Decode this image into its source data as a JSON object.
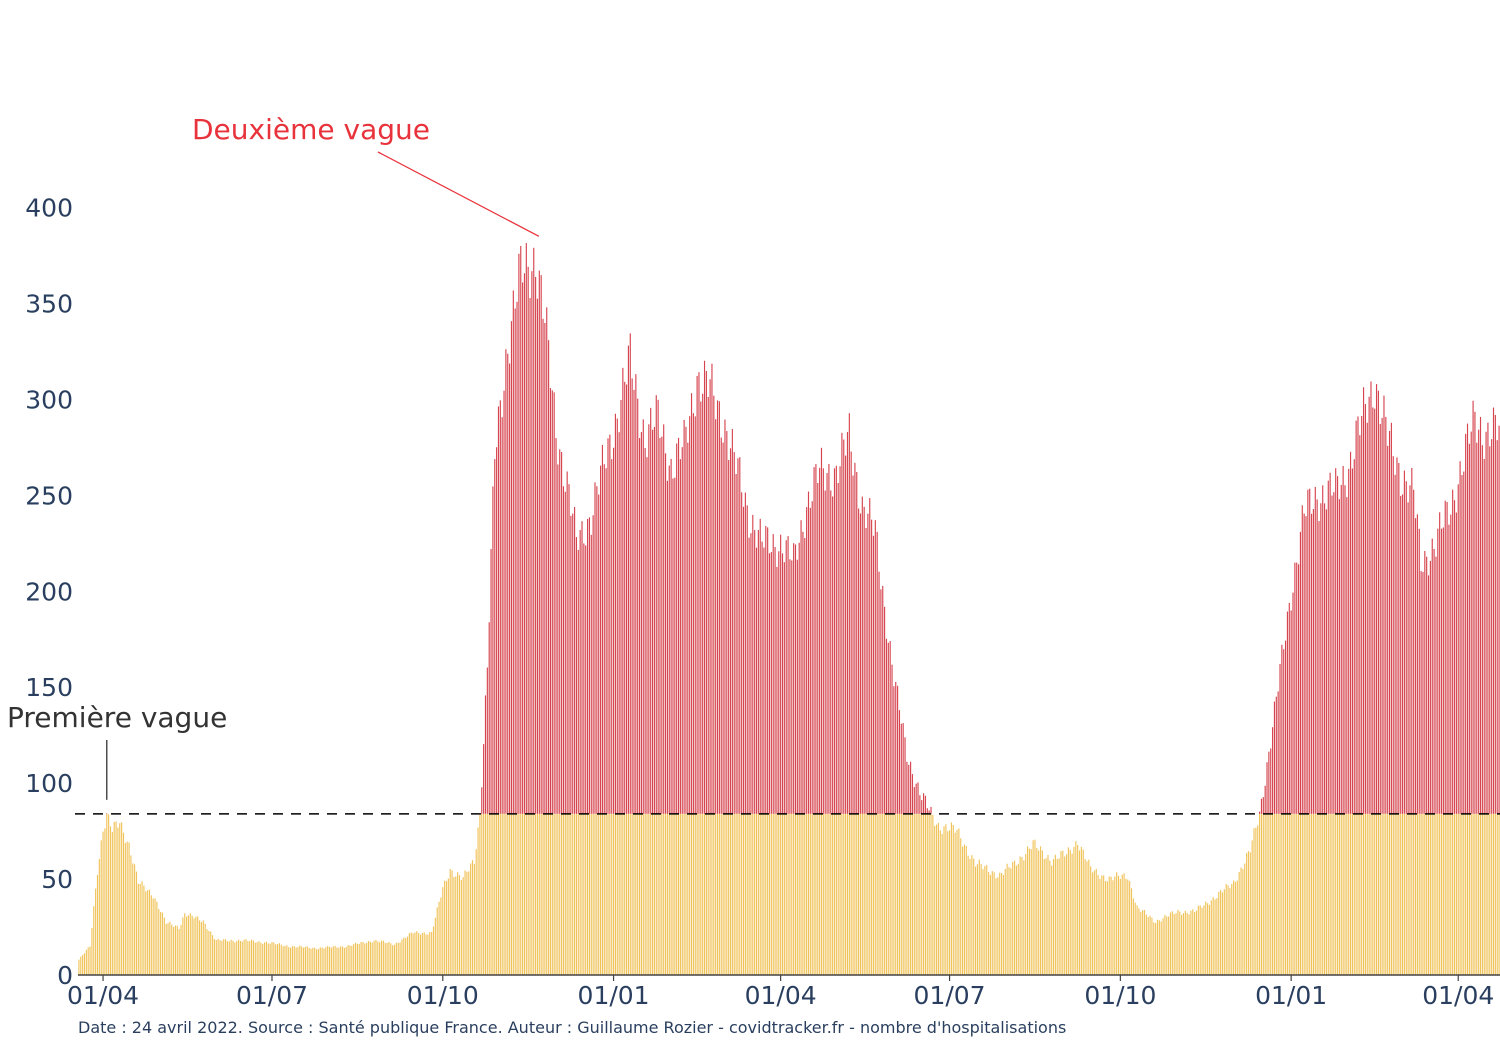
{
  "chart_data": {
    "type": "bar",
    "title": "",
    "xlabel": "",
    "ylabel": "",
    "ylim": [
      0,
      430
    ],
    "yticks": [
      0,
      50,
      100,
      150,
      200,
      250,
      300,
      350,
      400
    ],
    "xtick_labels": [
      "01/04",
      "01/07",
      "01/10",
      "01/01",
      "01/04",
      "01/07",
      "01/10",
      "01/01",
      "01/04"
    ],
    "xtick_dates": [
      "2020-04-01",
      "2020-07-01",
      "2020-10-01",
      "2021-01-01",
      "2021-04-01",
      "2021-07-01",
      "2021-10-01",
      "2022-01-01",
      "2022-04-01"
    ],
    "x_start": "2020-03-19",
    "x_end": "2022-04-23",
    "threshold": 84,
    "grid": false,
    "legend": "none",
    "colors": {
      "below_threshold": "#f0c35a",
      "above_threshold": "#d6454f",
      "threshold_line": "#000000",
      "annotation_red": "#e8333c",
      "annotation_dark": "#333333"
    },
    "series": [
      {
        "name": "",
        "anchors": [
          [
            "2020-03-19",
            8
          ],
          [
            "2020-03-25",
            15
          ],
          [
            "2020-03-29",
            55
          ],
          [
            "2020-04-01",
            76
          ],
          [
            "2020-04-03",
            83
          ],
          [
            "2020-04-06",
            75
          ],
          [
            "2020-04-10",
            80
          ],
          [
            "2020-04-15",
            68
          ],
          [
            "2020-04-20",
            48
          ],
          [
            "2020-04-28",
            42
          ],
          [
            "2020-05-05",
            27
          ],
          [
            "2020-05-12",
            25
          ],
          [
            "2020-05-15",
            32
          ],
          [
            "2020-05-25",
            28
          ],
          [
            "2020-06-01",
            18
          ],
          [
            "2020-06-15",
            18
          ],
          [
            "2020-06-28",
            17
          ],
          [
            "2020-07-10",
            15
          ],
          [
            "2020-07-25",
            14
          ],
          [
            "2020-08-10",
            15
          ],
          [
            "2020-08-25",
            18
          ],
          [
            "2020-09-05",
            16
          ],
          [
            "2020-09-15",
            22
          ],
          [
            "2020-09-25",
            22
          ],
          [
            "2020-10-01",
            45
          ],
          [
            "2020-10-05",
            55
          ],
          [
            "2020-10-12",
            50
          ],
          [
            "2020-10-18",
            60
          ],
          [
            "2020-10-21",
            84
          ],
          [
            "2020-10-25",
            160
          ],
          [
            "2020-10-29",
            270
          ],
          [
            "2020-11-05",
            330
          ],
          [
            "2020-11-12",
            365
          ],
          [
            "2020-11-20",
            375
          ],
          [
            "2020-11-25",
            340
          ],
          [
            "2020-12-01",
            285
          ],
          [
            "2020-12-08",
            250
          ],
          [
            "2020-12-12",
            225
          ],
          [
            "2020-12-20",
            240
          ],
          [
            "2020-12-28",
            270
          ],
          [
            "2021-01-05",
            300
          ],
          [
            "2021-01-10",
            320
          ],
          [
            "2021-01-18",
            280
          ],
          [
            "2021-01-25",
            290
          ],
          [
            "2021-02-01",
            265
          ],
          [
            "2021-02-08",
            275
          ],
          [
            "2021-02-15",
            312
          ],
          [
            "2021-02-22",
            305
          ],
          [
            "2021-03-01",
            290
          ],
          [
            "2021-03-08",
            265
          ],
          [
            "2021-03-15",
            240
          ],
          [
            "2021-03-22",
            225
          ],
          [
            "2021-04-01",
            225
          ],
          [
            "2021-04-08",
            215
          ],
          [
            "2021-04-15",
            245
          ],
          [
            "2021-04-22",
            262
          ],
          [
            "2021-05-01",
            262
          ],
          [
            "2021-05-08",
            280
          ],
          [
            "2021-05-15",
            245
          ],
          [
            "2021-05-22",
            230
          ],
          [
            "2021-06-01",
            155
          ],
          [
            "2021-06-08",
            115
          ],
          [
            "2021-06-15",
            95
          ],
          [
            "2021-06-21",
            84
          ],
          [
            "2021-06-25",
            78
          ],
          [
            "2021-07-05",
            75
          ],
          [
            "2021-07-15",
            58
          ],
          [
            "2021-07-28",
            52
          ],
          [
            "2021-08-05",
            58
          ],
          [
            "2021-08-15",
            68
          ],
          [
            "2021-08-25",
            60
          ],
          [
            "2021-09-02",
            63
          ],
          [
            "2021-09-08",
            70
          ],
          [
            "2021-09-15",
            55
          ],
          [
            "2021-09-25",
            50
          ],
          [
            "2021-10-05",
            52
          ],
          [
            "2021-10-10",
            35
          ],
          [
            "2021-10-20",
            28
          ],
          [
            "2021-11-01",
            33
          ],
          [
            "2021-11-10",
            33
          ],
          [
            "2021-11-20",
            40
          ],
          [
            "2021-12-01",
            48
          ],
          [
            "2021-12-10",
            65
          ],
          [
            "2021-12-15",
            84
          ],
          [
            "2021-12-18",
            103
          ],
          [
            "2021-12-25",
            150
          ],
          [
            "2022-01-01",
            200
          ],
          [
            "2022-01-08",
            240
          ],
          [
            "2022-01-15",
            250
          ],
          [
            "2022-01-25",
            252
          ],
          [
            "2022-02-01",
            265
          ],
          [
            "2022-02-10",
            295
          ],
          [
            "2022-02-15",
            310
          ],
          [
            "2022-02-22",
            280
          ],
          [
            "2022-03-01",
            262
          ],
          [
            "2022-03-08",
            250
          ],
          [
            "2022-03-12",
            215
          ],
          [
            "2022-03-20",
            225
          ],
          [
            "2022-03-28",
            245
          ],
          [
            "2022-04-03",
            265
          ],
          [
            "2022-04-10",
            290
          ],
          [
            "2022-04-16",
            282
          ],
          [
            "2022-04-23",
            283
          ]
        ]
      }
    ],
    "annotations": [
      {
        "text": "Deuxième vague",
        "date": "2020-11-25",
        "value": 385
      },
      {
        "text": "Première vague",
        "date": "2020-04-03",
        "value": 84
      }
    ]
  },
  "caption": "Date : 24 avril 2022. Source : Santé publique France. Auteur : Guillaume Rozier - covidtracker.fr - nombre d'hospitalisations"
}
